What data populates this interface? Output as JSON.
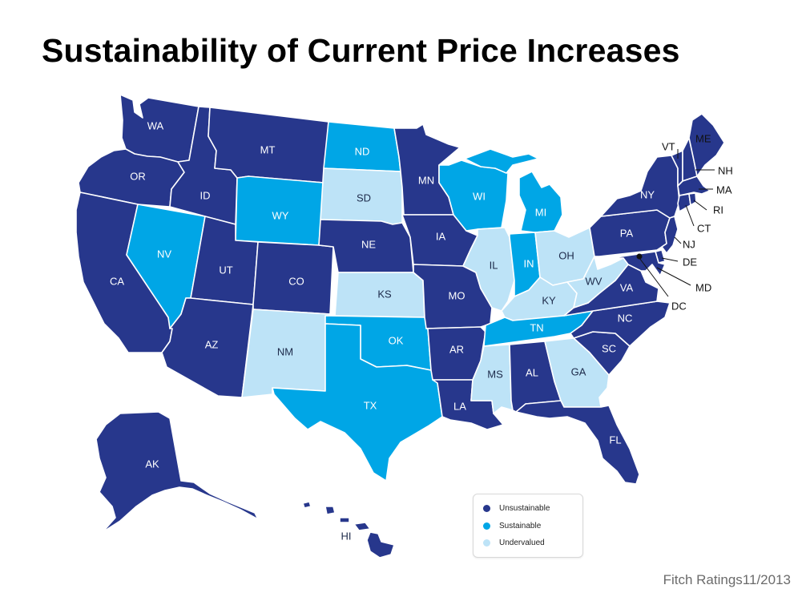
{
  "title": "Sustainability of Current Price Increases",
  "source": "Fitch Ratings11/2013",
  "categories": {
    "unsustainable": {
      "label": "Unsustainable",
      "color": "#27378c"
    },
    "sustainable": {
      "label": "Sustainable",
      "color": "#00a6e6"
    },
    "undervalued": {
      "label": "Undervalued",
      "color": "#bde3f7"
    }
  },
  "legend": [
    "Unsustainable",
    "Sustainable",
    "Undervalued"
  ],
  "states": {
    "WA": "unsustainable",
    "OR": "unsustainable",
    "CA": "unsustainable",
    "NV": "sustainable",
    "ID": "unsustainable",
    "MT": "unsustainable",
    "WY": "sustainable",
    "UT": "unsustainable",
    "AZ": "unsustainable",
    "CO": "unsustainable",
    "NM": "undervalued",
    "ND": "sustainable",
    "SD": "undervalued",
    "NE": "unsustainable",
    "KS": "undervalued",
    "OK": "sustainable",
    "TX": "sustainable",
    "MN": "unsustainable",
    "IA": "unsustainable",
    "MO": "unsustainable",
    "AR": "unsustainable",
    "LA": "unsustainable",
    "WI": "sustainable",
    "IL": "undervalued",
    "MI": "sustainable",
    "IN": "sustainable",
    "OH": "undervalued",
    "KY": "undervalued",
    "TN": "sustainable",
    "MS": "undervalued",
    "AL": "unsustainable",
    "GA": "undervalued",
    "FL": "unsustainable",
    "SC": "unsustainable",
    "NC": "unsustainable",
    "VA": "unsustainable",
    "WV": "undervalued",
    "PA": "unsustainable",
    "NY": "unsustainable",
    "VT": "unsustainable",
    "NH": "unsustainable",
    "ME": "unsustainable",
    "MA": "unsustainable",
    "RI": "unsustainable",
    "CT": "unsustainable",
    "NJ": "unsustainable",
    "DE": "unsustainable",
    "MD": "unsustainable",
    "DC": "unsustainable",
    "AK": "unsustainable",
    "HI": "unsustainable"
  },
  "labels": {
    "WA": "WA",
    "OR": "OR",
    "CA": "CA",
    "NV": "NV",
    "ID": "ID",
    "MT": "MT",
    "WY": "WY",
    "UT": "UT",
    "AZ": "AZ",
    "CO": "CO",
    "NM": "NM",
    "ND": "ND",
    "SD": "SD",
    "NE": "NE",
    "KS": "KS",
    "OK": "OK",
    "TX": "TX",
    "MN": "MN",
    "IA": "IA",
    "MO": "MO",
    "AR": "AR",
    "LA": "LA",
    "WI": "WI",
    "IL": "IL",
    "MI": "MI",
    "IN": "IN",
    "OH": "OH",
    "KY": "KY",
    "TN": "TN",
    "MS": "MS",
    "AL": "AL",
    "GA": "GA",
    "FL": "FL",
    "SC": "SC",
    "NC": "NC",
    "VA": "VA",
    "WV": "WV",
    "PA": "PA",
    "NY": "NY",
    "VT": "VT",
    "NH": "NH",
    "ME": "ME",
    "MA": "MA",
    "RI": "RI",
    "CT": "CT",
    "NJ": "NJ",
    "DE": "DE",
    "MD": "MD",
    "DC": "DC",
    "AK": "AK",
    "HI": "HI"
  }
}
